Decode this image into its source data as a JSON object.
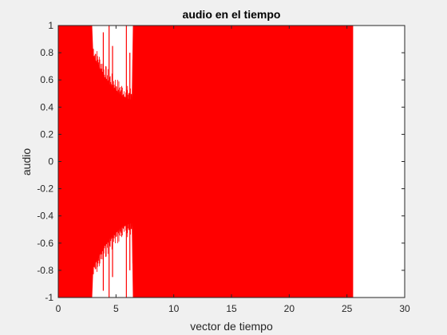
{
  "chart_data": {
    "type": "line",
    "title": "audio en el tiempo",
    "xlabel": "vector de tiempo",
    "ylabel": "audio",
    "xlim": [
      0,
      30
    ],
    "ylim": [
      -1,
      1
    ],
    "xticks": [
      0,
      5,
      10,
      15,
      20,
      25,
      30
    ],
    "yticks": [
      -1,
      -0.8,
      -0.6,
      -0.4,
      -0.2,
      0,
      0.2,
      0.4,
      0.6,
      0.8,
      1
    ],
    "grid": false,
    "series_color": "#ff0000",
    "signal": {
      "t_start": 0,
      "t_end": 25.5,
      "envelope": [
        {
          "t": 0.0,
          "amp": 1.0
        },
        {
          "t": 2.9,
          "amp": 1.0
        },
        {
          "t": 3.0,
          "amp": 0.78
        },
        {
          "t": 3.5,
          "amp": 0.7
        },
        {
          "t": 4.0,
          "amp": 0.62
        },
        {
          "t": 4.5,
          "amp": 0.56
        },
        {
          "t": 5.0,
          "amp": 0.52
        },
        {
          "t": 5.5,
          "amp": 0.48
        },
        {
          "t": 6.0,
          "amp": 0.46
        },
        {
          "t": 6.4,
          "amp": 0.45
        },
        {
          "t": 6.5,
          "amp": 1.0
        },
        {
          "t": 25.5,
          "amp": 1.0
        }
      ],
      "spikes": [
        {
          "t": 3.9,
          "amp": 0.95
        },
        {
          "t": 4.4,
          "amp": 1.0
        },
        {
          "t": 4.7,
          "amp": 0.85
        },
        {
          "t": 5.9,
          "amp": 1.0
        },
        {
          "t": 6.2,
          "amp": 0.8
        }
      ]
    }
  }
}
